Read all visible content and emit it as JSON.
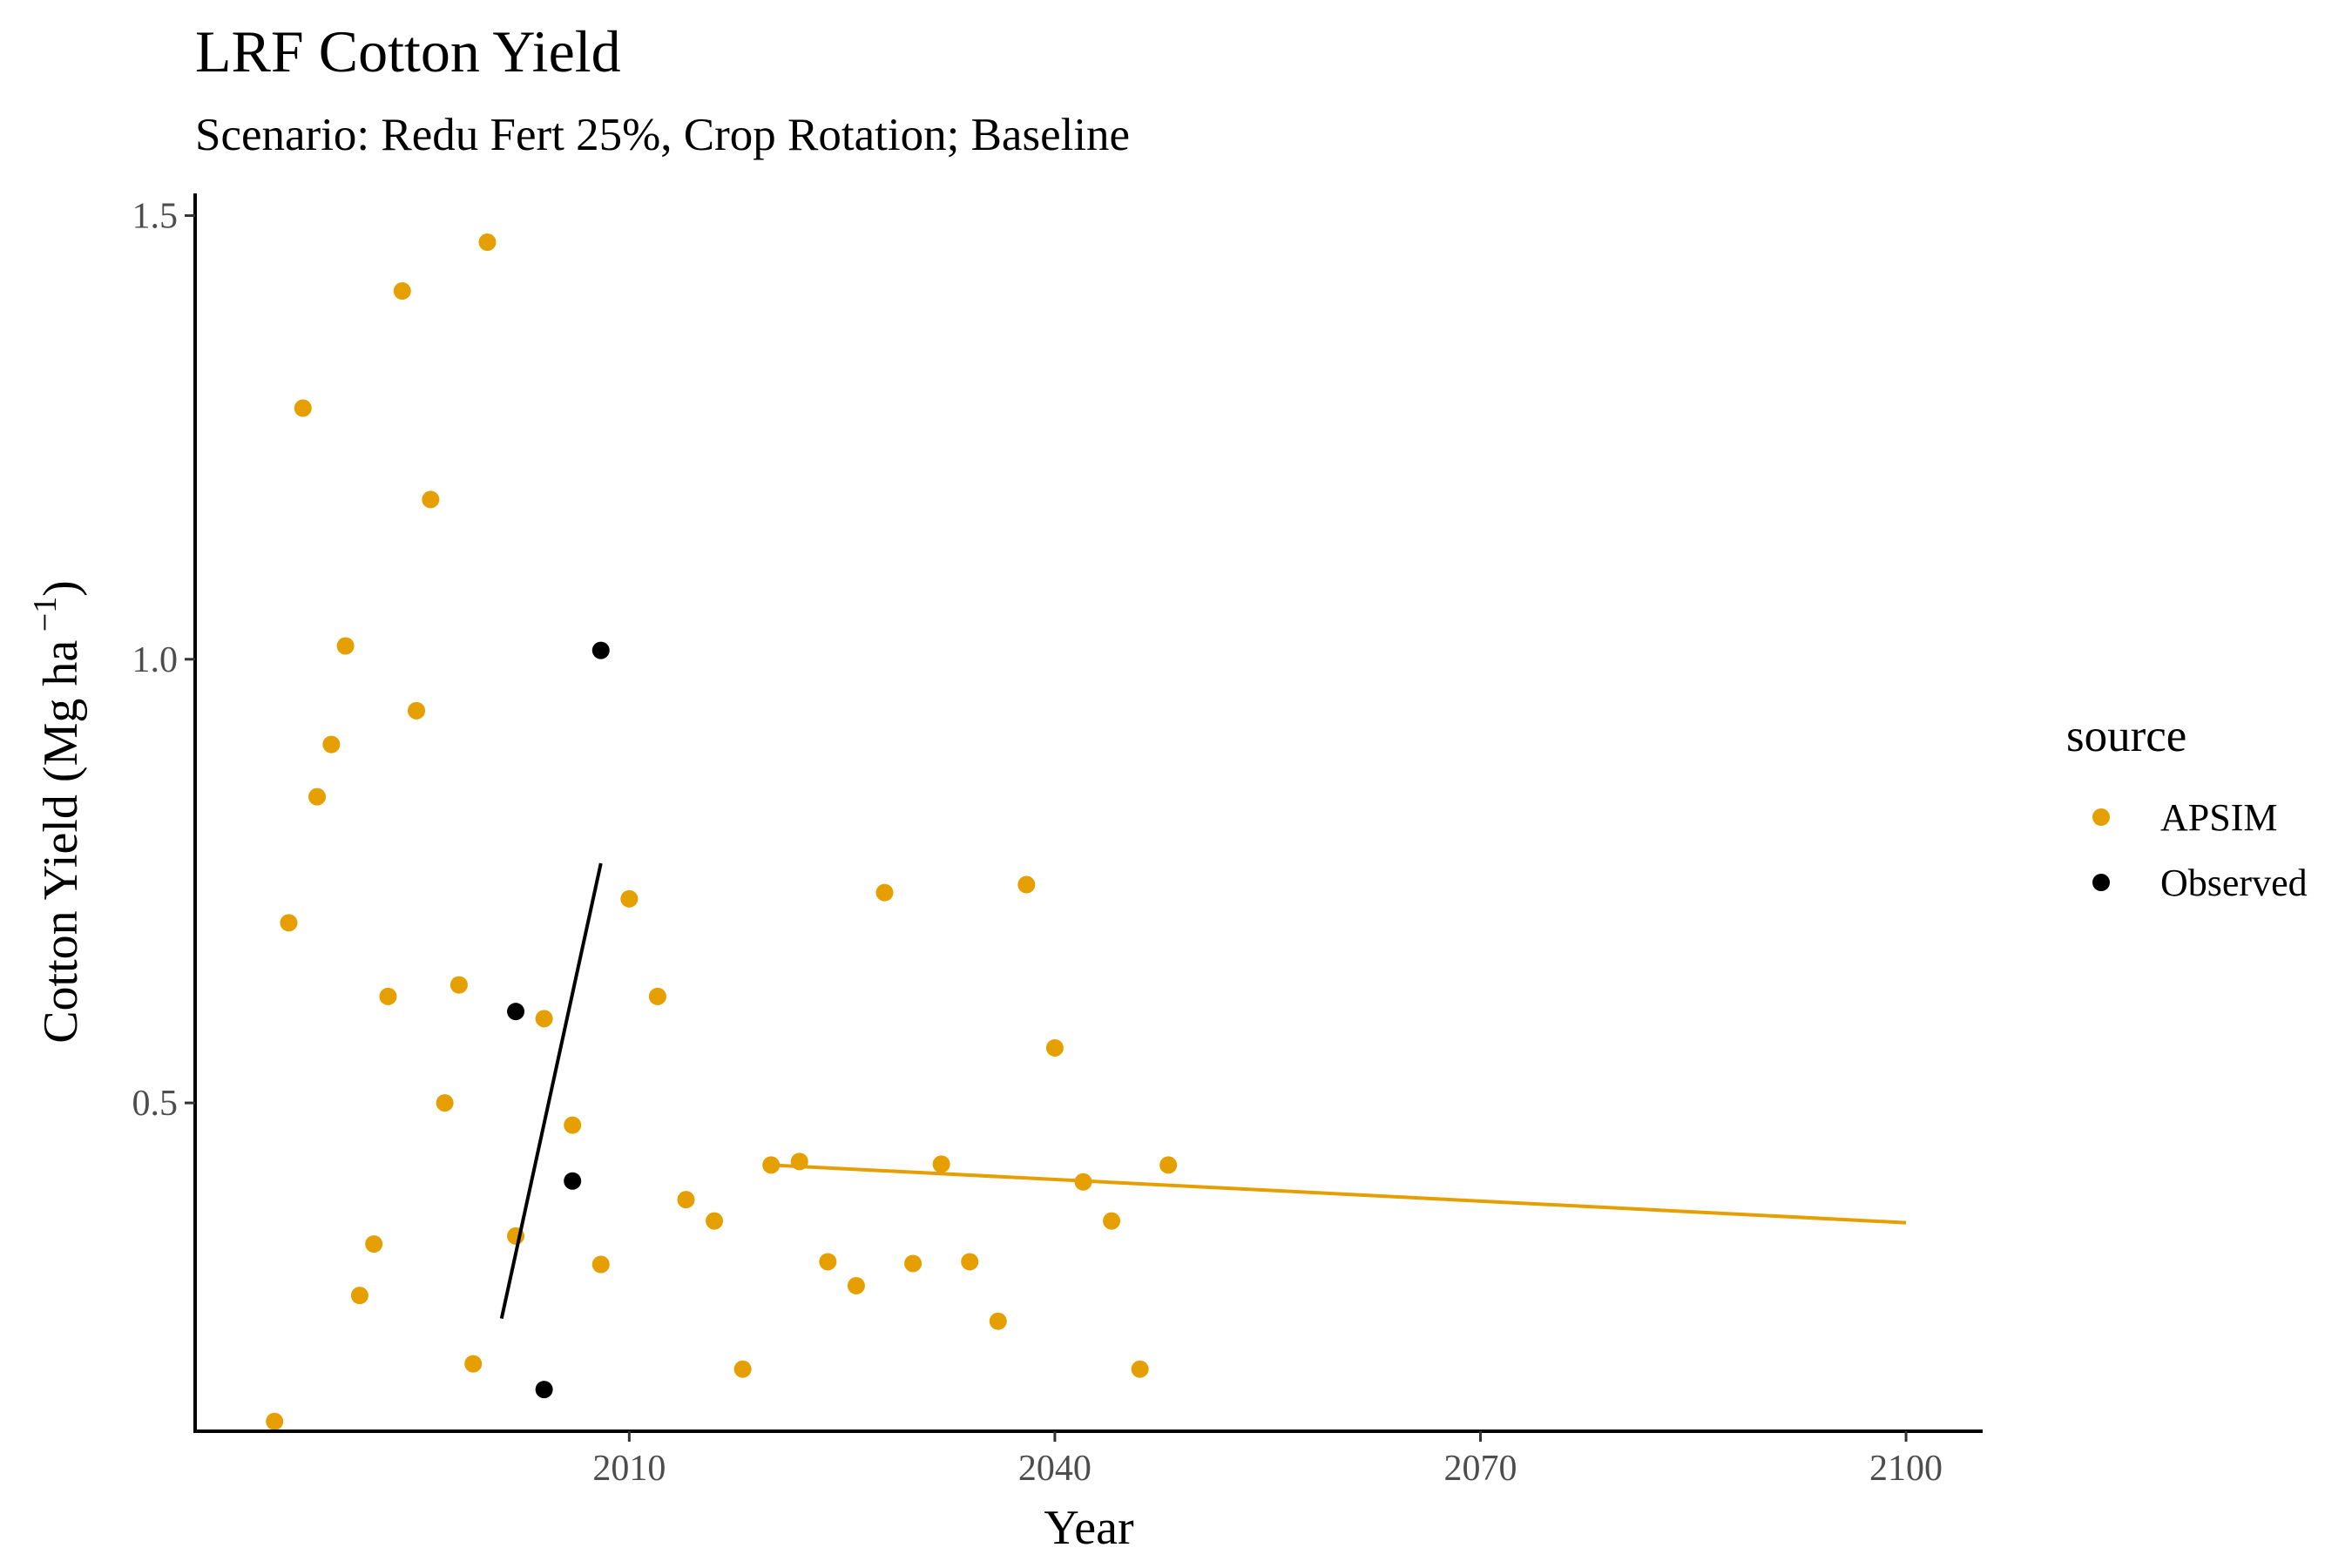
{
  "chart_data": {
    "type": "scatter",
    "title": "LRF Cotton Yield",
    "subtitle": "Scenario: Redu Fert 25%, Crop Rotation; Baseline",
    "xlabel": "Year",
    "ylabel_main": "Cotton Yield (Mg ha",
    "ylabel_sup": " −1",
    "ylabel_close": ")",
    "xlim": [
      1979.4,
      2105.4
    ],
    "ylim": [
      0.13,
      1.525
    ],
    "xticks": [
      2010,
      2040,
      2070,
      2100
    ],
    "xtick_labels": [
      "2010",
      "2040",
      "2070",
      "2100"
    ],
    "yticks": [
      0.5,
      1.0,
      1.5
    ],
    "ytick_labels": [
      "0.5",
      "1.0",
      "1.5"
    ],
    "grid": false,
    "legend": {
      "title": "source",
      "position": "right",
      "entries": [
        "APSIM",
        "Observed"
      ]
    },
    "series": [
      {
        "name": "APSIM",
        "color": "#E69F00",
        "points": [
          [
            1985,
            0.141
          ],
          [
            1986,
            0.703
          ],
          [
            1987,
            1.283
          ],
          [
            1988,
            0.845
          ],
          [
            1989,
            0.904
          ],
          [
            1990,
            1.015
          ],
          [
            1991,
            0.283
          ],
          [
            1992,
            0.341
          ],
          [
            1993,
            0.62
          ],
          [
            1994,
            1.415
          ],
          [
            1995,
            0.942
          ],
          [
            1996,
            1.18
          ],
          [
            1997,
            0.5
          ],
          [
            1998,
            0.633
          ],
          [
            1999,
            0.206
          ],
          [
            2000,
            1.47
          ],
          [
            2002,
            0.35
          ],
          [
            2004,
            0.595
          ],
          [
            2006,
            0.475
          ],
          [
            2008,
            0.318
          ],
          [
            2010,
            0.73
          ],
          [
            2012,
            0.62
          ],
          [
            2014,
            0.391
          ],
          [
            2016,
            0.367
          ],
          [
            2018,
            0.2
          ],
          [
            2020,
            0.43
          ],
          [
            2022,
            0.434
          ],
          [
            2024,
            0.321
          ],
          [
            2026,
            0.294
          ],
          [
            2028,
            0.737
          ],
          [
            2030,
            0.319
          ],
          [
            2032,
            0.431
          ],
          [
            2034,
            0.321
          ],
          [
            2036,
            0.254
          ],
          [
            2038,
            0.746
          ],
          [
            2040,
            0.562
          ],
          [
            2042,
            0.411
          ],
          [
            2044,
            0.367
          ],
          [
            2046,
            0.2
          ],
          [
            2048,
            0.43
          ]
        ],
        "trend": [
          [
            2020,
            0.43
          ],
          [
            2100,
            0.365
          ]
        ]
      },
      {
        "name": "Observed",
        "color": "#000000",
        "points": [
          [
            2002,
            0.603
          ],
          [
            2004,
            0.177
          ],
          [
            2006,
            0.412
          ],
          [
            2008,
            1.01
          ]
        ],
        "trend": [
          [
            2001,
            0.257
          ],
          [
            2008,
            0.77
          ]
        ]
      }
    ]
  }
}
